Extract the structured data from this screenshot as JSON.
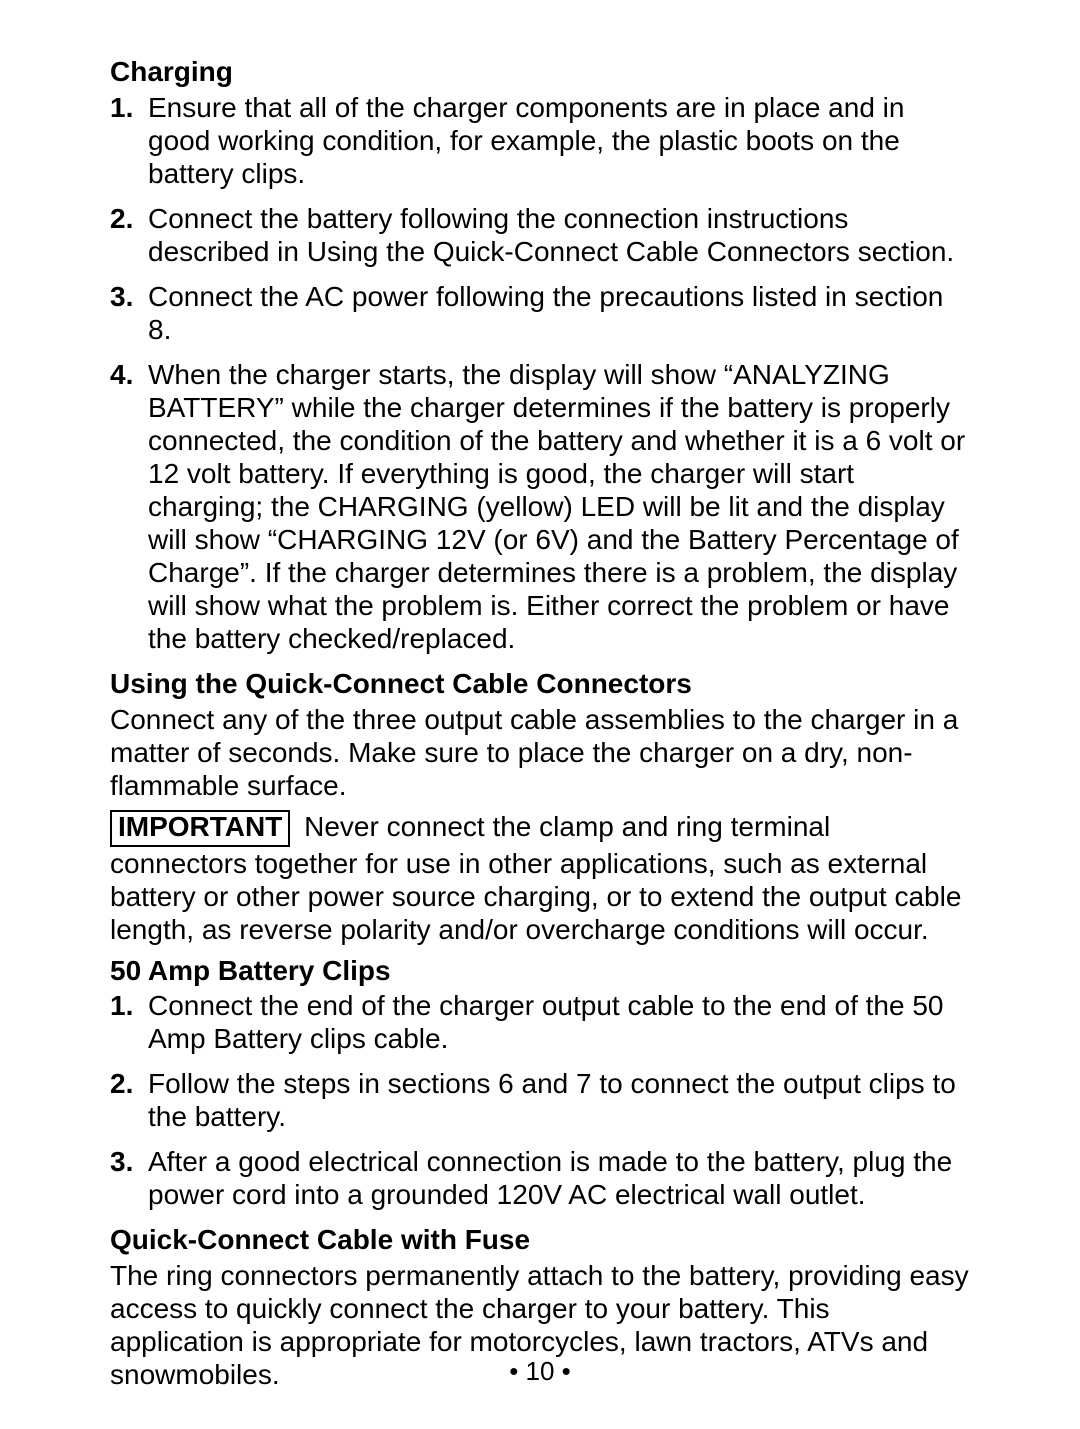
{
  "sections": {
    "charging": {
      "title": "Charging",
      "items": [
        "Ensure that all of the charger components are in place and in good working condition, for example, the plastic boots on the battery clips.",
        "Connect the battery following the connection instructions described in Using the Quick-Connect Cable Connectors section.",
        "Connect the AC power following the precautions listed in section 8.",
        "When the charger starts, the display will show “ANALYZING BATTERY” while the charger determines if the battery is properly connected, the condition of the battery and whether it is a 6 volt or 12 volt battery. If everything is good, the charger will start charging; the CHARGING (yellow) LED will be lit and the display will show “CHARGING 12V (or 6V) and the Battery Percentage of Charge”. If the charger determines there is a problem, the display will show what the problem is. Either correct the problem or have the battery checked/replaced."
      ]
    },
    "quickConnect": {
      "title": "Using the Quick-Connect Cable Connectors",
      "intro": "Connect any of the three output cable assemblies to the charger in a matter of seconds. Make sure to place the charger on a dry, non-flammable surface.",
      "important_label": "IMPORTANT",
      "important_text": " Never connect the clamp and ring terminal connectors together for use in other applications, such as external battery or other power source charging, or to extend the output cable length, as reverse polarity and/or overcharge conditions will occur."
    },
    "clips": {
      "title": "50 Amp Battery Clips",
      "items": [
        "Connect the end of the charger output cable to the end of the 50 Amp Battery clips cable.",
        "Follow the steps in sections 6 and 7 to connect the output clips to the battery.",
        "After a good electrical connection is made to the battery, plug the power cord into a grounded 120V AC electrical wall outlet."
      ]
    },
    "fuse": {
      "title": "Quick-Connect Cable with Fuse",
      "text": "The ring connectors permanently attach to the battery, providing easy access to quickly connect the charger to your battery. This application is appropriate for motorcycles, lawn tractors, ATVs and snowmobiles."
    }
  },
  "numbers": {
    "n1": "1.",
    "n2": "2.",
    "n3": "3.",
    "n4": "4."
  },
  "page_number": "• 10 •"
}
